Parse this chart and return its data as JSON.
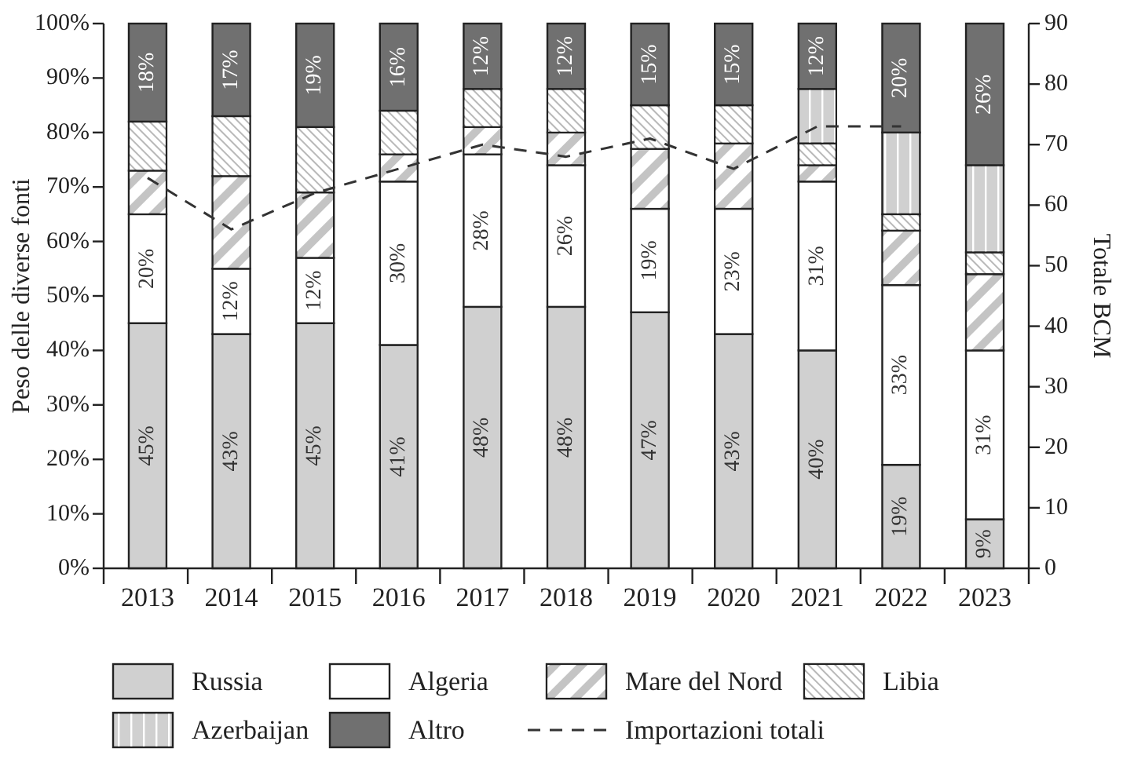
{
  "chart_data": {
    "type": "bar",
    "stacked": true,
    "categories": [
      "2013",
      "2014",
      "2015",
      "2016",
      "2017",
      "2018",
      "2019",
      "2020",
      "2021",
      "2022",
      "2023"
    ],
    "ylabel": "Peso delle diverse fonti",
    "y2label": "Totale BCM",
    "ylim": [
      0,
      100
    ],
    "yticks": [
      {
        "value": 0,
        "label": "0%"
      },
      {
        "value": 10,
        "label": "10%"
      },
      {
        "value": 20,
        "label": "20%"
      },
      {
        "value": 30,
        "label": "30%"
      },
      {
        "value": 40,
        "label": "40%"
      },
      {
        "value": 50,
        "label": "50%"
      },
      {
        "value": 60,
        "label": "60%"
      },
      {
        "value": 70,
        "label": "70%"
      },
      {
        "value": 80,
        "label": "80%"
      },
      {
        "value": 90,
        "label": "90%"
      },
      {
        "value": 100,
        "label": "100%"
      }
    ],
    "y2lim": [
      0,
      90
    ],
    "y2ticks": [
      0,
      10,
      20,
      30,
      40,
      50,
      60,
      70,
      80,
      90
    ],
    "legend": "bottom",
    "grid": false,
    "series": [
      {
        "name": "Russia",
        "color": "#d0d0d0",
        "values": [
          45,
          43,
          45,
          41,
          48,
          48,
          47,
          43,
          40,
          19,
          9
        ],
        "value_labels": [
          "45%",
          "43%",
          "45%",
          "41%",
          "48%",
          "48%",
          "47%",
          "43%",
          "40%",
          "19%",
          "9%"
        ]
      },
      {
        "name": "Algeria",
        "color": "#ffffff",
        "values": [
          20,
          12,
          12,
          30,
          28,
          26,
          19,
          23,
          31,
          33,
          31
        ],
        "value_labels": [
          "20%",
          "12%",
          "12%",
          "30%",
          "28%",
          "26%",
          "19%",
          "23%",
          "31%",
          "33%",
          "31%"
        ]
      },
      {
        "name": "Mare del Nord",
        "color": "#c4c4c4",
        "values": [
          8,
          17,
          12,
          5,
          5,
          6,
          11,
          12,
          3,
          10,
          14
        ]
      },
      {
        "name": "Libia",
        "color": "#b8b8b8",
        "values": [
          9,
          11,
          12,
          8,
          7,
          8,
          8,
          7,
          4,
          3,
          4
        ]
      },
      {
        "name": "Azerbaijan",
        "color": "#d0d0d0",
        "values": [
          0,
          0,
          0,
          0,
          0,
          0,
          0,
          0,
          10,
          15,
          16
        ]
      },
      {
        "name": "Altro",
        "color": "#707070",
        "values": [
          18,
          17,
          19,
          16,
          12,
          12,
          15,
          15,
          12,
          20,
          26
        ],
        "value_labels": [
          "18%",
          "17%",
          "19%",
          "16%",
          "12%",
          "12%",
          "15%",
          "15%",
          "12%",
          "20%",
          "26%"
        ]
      },
      {
        "name": "Importazioni totali",
        "type": "line",
        "axis": "y2",
        "color": "#333333",
        "line_style": "dashed",
        "marker": "none",
        "values": [
          64.5,
          56,
          62,
          66,
          70,
          68,
          71,
          66,
          73,
          73,
          null
        ]
      }
    ]
  }
}
